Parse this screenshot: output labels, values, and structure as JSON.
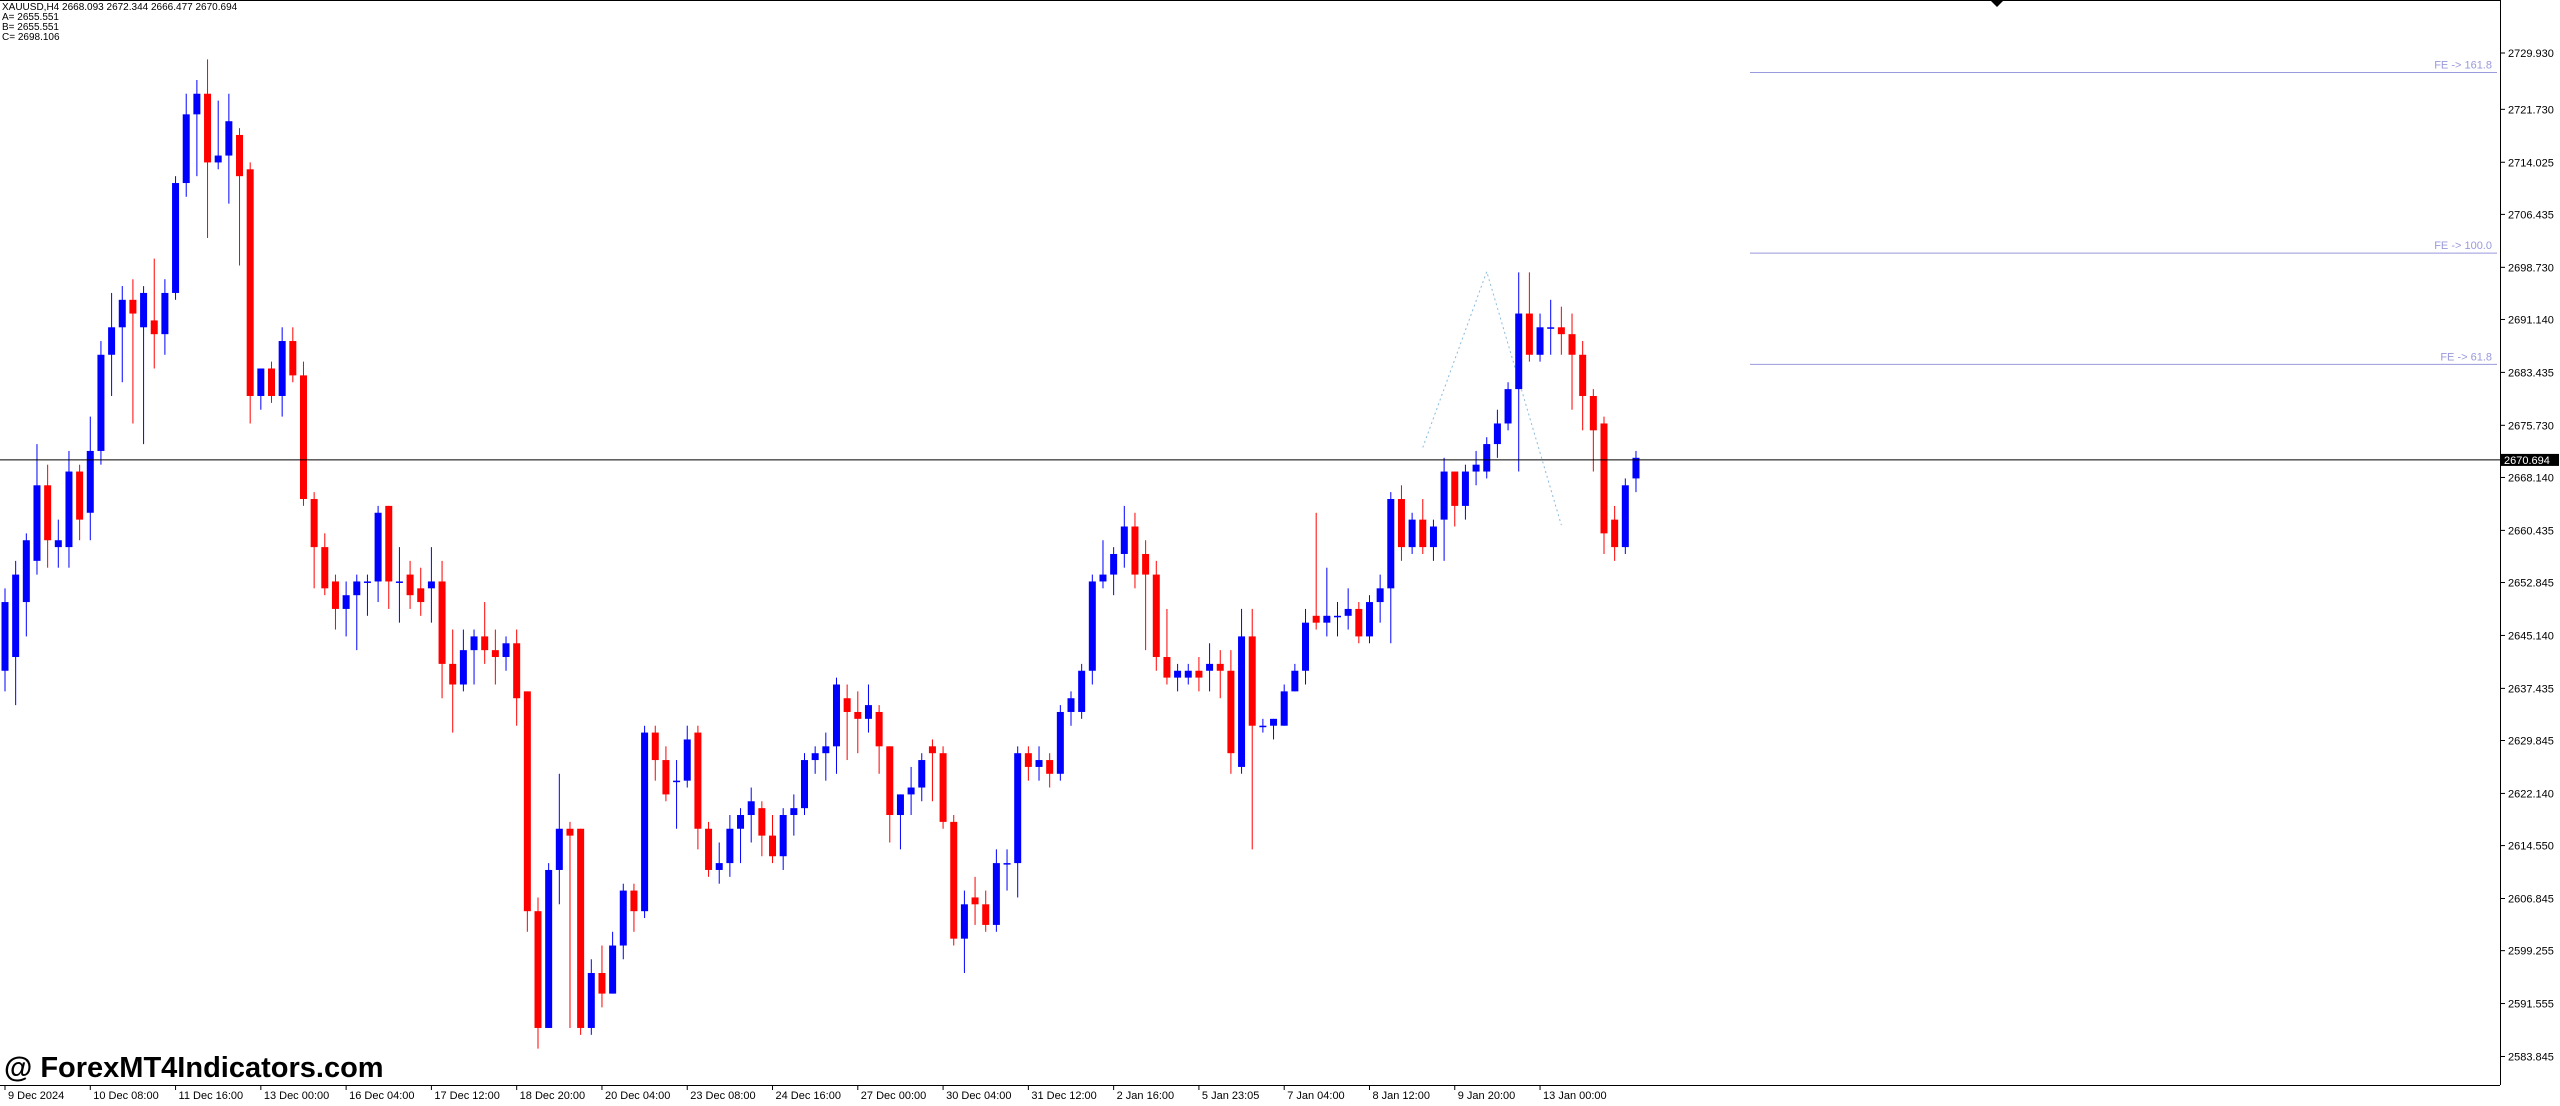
{
  "header": {
    "symbol_line": "XAUUSD,H4  2668.093 2672.344 2666.477 2670.694",
    "point_a": "A= 2655.551",
    "point_b": "B= 2655.551",
    "point_c": "C= 2698.106"
  },
  "watermark": "@ ForexMT4Indicators.com",
  "colors": {
    "bull": "#0000ff",
    "bear": "#ff0000",
    "fe_line": "#9999dd",
    "price_line": "#000000",
    "zigzag": "#88bbdd"
  },
  "chart_data": {
    "type": "candlestick",
    "symbol": "XAUUSD",
    "timeframe": "H4",
    "ylim": [
      2580.0,
      2735.0
    ],
    "y_ticks": [
      "2729.930",
      "2721.730",
      "2714.025",
      "2706.435",
      "2698.730",
      "2691.140",
      "2683.435",
      "2675.730",
      "2668.140",
      "2660.435",
      "2652.845",
      "2645.140",
      "2637.435",
      "2629.845",
      "2622.140",
      "2614.550",
      "2606.845",
      "2599.255",
      "2591.555",
      "2583.845"
    ],
    "x_ticks": [
      {
        "bar": 0,
        "label": "9 Dec 2024"
      },
      {
        "bar": 8,
        "label": "10 Dec 08:00"
      },
      {
        "bar": 16,
        "label": "11 Dec 16:00"
      },
      {
        "bar": 24,
        "label": "13 Dec 00:00"
      },
      {
        "bar": 32,
        "label": "16 Dec 04:00"
      },
      {
        "bar": 40,
        "label": "17 Dec 12:00"
      },
      {
        "bar": 48,
        "label": "18 Dec 20:00"
      },
      {
        "bar": 56,
        "label": "20 Dec 04:00"
      },
      {
        "bar": 64,
        "label": "23 Dec 08:00"
      },
      {
        "bar": 72,
        "label": "24 Dec 16:00"
      },
      {
        "bar": 80,
        "label": "27 Dec 00:00"
      },
      {
        "bar": 88,
        "label": "30 Dec 04:00"
      },
      {
        "bar": 96,
        "label": "31 Dec 12:00"
      },
      {
        "bar": 104,
        "label": "2 Jan 16:00"
      },
      {
        "bar": 112,
        "label": "5 Jan 23:05"
      },
      {
        "bar": 120,
        "label": "7 Jan 04:00"
      },
      {
        "bar": 128,
        "label": "8 Jan 12:00"
      },
      {
        "bar": 136,
        "label": "9 Jan 20:00"
      },
      {
        "bar": 144,
        "label": "13 Jan 00:00"
      }
    ],
    "current_price": "2670.694",
    "fe_levels": [
      {
        "label": "FE ->  161.8",
        "price": 2727.1
      },
      {
        "label": "FE ->  100.0",
        "price": 2700.8
      },
      {
        "label": "FE ->  61.8",
        "price": 2684.6
      }
    ],
    "zigzag": [
      {
        "bar": 133,
        "price": 2672.5
      },
      {
        "bar": 139,
        "price": 2698.1
      },
      {
        "bar": 146,
        "price": 2661.2
      }
    ],
    "candles": [
      {
        "o": 2640,
        "h": 2652,
        "c": 2650,
        "l": 2637
      },
      {
        "o": 2642,
        "h": 2656,
        "c": 2654,
        "l": 2635
      },
      {
        "o": 2650,
        "h": 2660,
        "c": 2659,
        "l": 2645
      },
      {
        "o": 2656,
        "h": 2673,
        "c": 2667,
        "l": 2654
      },
      {
        "o": 2667,
        "h": 2670,
        "c": 2659,
        "l": 2655
      },
      {
        "o": 2658,
        "h": 2662,
        "c": 2659,
        "l": 2655
      },
      {
        "o": 2658,
        "h": 2672,
        "c": 2669,
        "l": 2655
      },
      {
        "o": 2669,
        "h": 2670,
        "c": 2662,
        "l": 2659
      },
      {
        "o": 2663,
        "h": 2677,
        "c": 2672,
        "l": 2659
      },
      {
        "o": 2672,
        "h": 2688,
        "c": 2686,
        "l": 2670
      },
      {
        "o": 2686,
        "h": 2695,
        "c": 2690,
        "l": 2680
      },
      {
        "o": 2690,
        "h": 2696,
        "c": 2694,
        "l": 2682
      },
      {
        "o": 2694,
        "h": 2697,
        "c": 2692,
        "l": 2676
      },
      {
        "o": 2690,
        "h": 2696,
        "c": 2695,
        "l": 2673
      },
      {
        "o": 2691,
        "h": 2700,
        "c": 2689,
        "l": 2684
      },
      {
        "o": 2689,
        "h": 2697,
        "c": 2695,
        "l": 2686
      },
      {
        "o": 2695,
        "h": 2712,
        "c": 2711,
        "l": 2694
      },
      {
        "o": 2711,
        "h": 2724,
        "c": 2721,
        "l": 2709
      },
      {
        "o": 2721,
        "h": 2726,
        "c": 2724,
        "l": 2712
      },
      {
        "o": 2724,
        "h": 2729,
        "c": 2714,
        "l": 2703
      },
      {
        "o": 2714,
        "h": 2723,
        "c": 2715,
        "l": 2713
      },
      {
        "o": 2715,
        "h": 2724,
        "c": 2720,
        "l": 2708
      },
      {
        "o": 2718,
        "h": 2719,
        "c": 2712,
        "l": 2699
      },
      {
        "o": 2713,
        "h": 2714,
        "c": 2680,
        "l": 2676
      },
      {
        "o": 2680,
        "h": 2684,
        "c": 2684,
        "l": 2678
      },
      {
        "o": 2684,
        "h": 2685,
        "c": 2680,
        "l": 2679
      },
      {
        "o": 2680,
        "h": 2690,
        "c": 2688,
        "l": 2677
      },
      {
        "o": 2688,
        "h": 2690,
        "c": 2683,
        "l": 2682
      },
      {
        "o": 2683,
        "h": 2685,
        "c": 2665,
        "l": 2664
      },
      {
        "o": 2665,
        "h": 2666,
        "c": 2658,
        "l": 2652
      },
      {
        "o": 2658,
        "h": 2660,
        "c": 2652,
        "l": 2651
      },
      {
        "o": 2653,
        "h": 2654,
        "c": 2649,
        "l": 2646
      },
      {
        "o": 2649,
        "h": 2653,
        "c": 2651,
        "l": 2645
      },
      {
        "o": 2651,
        "h": 2654,
        "c": 2653,
        "l": 2643
      },
      {
        "o": 2653,
        "h": 2654,
        "c": 2653,
        "l": 2648
      },
      {
        "o": 2653,
        "h": 2664,
        "c": 2663,
        "l": 2650
      },
      {
        "o": 2664,
        "h": 2664,
        "c": 2653,
        "l": 2649
      },
      {
        "o": 2653,
        "h": 2658,
        "c": 2653,
        "l": 2647
      },
      {
        "o": 2654,
        "h": 2656,
        "c": 2651,
        "l": 2649
      },
      {
        "o": 2652,
        "h": 2655,
        "c": 2650,
        "l": 2648
      },
      {
        "o": 2652,
        "h": 2658,
        "c": 2653,
        "l": 2647
      },
      {
        "o": 2653,
        "h": 2656,
        "c": 2641,
        "l": 2636
      },
      {
        "o": 2641,
        "h": 2646,
        "c": 2638,
        "l": 2631
      },
      {
        "o": 2638,
        "h": 2646,
        "c": 2643,
        "l": 2637
      },
      {
        "o": 2643,
        "h": 2646,
        "c": 2645,
        "l": 2638
      },
      {
        "o": 2645,
        "h": 2650,
        "c": 2643,
        "l": 2641
      },
      {
        "o": 2643,
        "h": 2646,
        "c": 2642,
        "l": 2638
      },
      {
        "o": 2642,
        "h": 2645,
        "c": 2644,
        "l": 2640
      },
      {
        "o": 2644,
        "h": 2646,
        "c": 2636,
        "l": 2632
      },
      {
        "o": 2637,
        "h": 2637,
        "c": 2605,
        "l": 2602
      },
      {
        "o": 2605,
        "h": 2607,
        "c": 2588,
        "l": 2585
      },
      {
        "o": 2588,
        "h": 2612,
        "c": 2611,
        "l": 2588
      },
      {
        "o": 2611,
        "h": 2625,
        "c": 2617,
        "l": 2606
      },
      {
        "o": 2617,
        "h": 2618,
        "c": 2616,
        "l": 2588
      },
      {
        "o": 2617,
        "h": 2617,
        "c": 2588,
        "l": 2587
      },
      {
        "o": 2588,
        "h": 2598,
        "c": 2596,
        "l": 2587
      },
      {
        "o": 2596,
        "h": 2600,
        "c": 2593,
        "l": 2591
      },
      {
        "o": 2593,
        "h": 2602,
        "c": 2600,
        "l": 2593
      },
      {
        "o": 2600,
        "h": 2609,
        "c": 2608,
        "l": 2598
      },
      {
        "o": 2608,
        "h": 2609,
        "c": 2605,
        "l": 2602
      },
      {
        "o": 2605,
        "h": 2632,
        "c": 2631,
        "l": 2604
      },
      {
        "o": 2631,
        "h": 2632,
        "c": 2627,
        "l": 2624
      },
      {
        "o": 2627,
        "h": 2629,
        "c": 2622,
        "l": 2621
      },
      {
        "o": 2624,
        "h": 2627,
        "c": 2624,
        "l": 2617
      },
      {
        "o": 2624,
        "h": 2632,
        "c": 2630,
        "l": 2623
      },
      {
        "o": 2631,
        "h": 2632,
        "c": 2617,
        "l": 2614
      },
      {
        "o": 2617,
        "h": 2618,
        "c": 2611,
        "l": 2610
      },
      {
        "o": 2611,
        "h": 2615,
        "c": 2612,
        "l": 2609
      },
      {
        "o": 2612,
        "h": 2619,
        "c": 2617,
        "l": 2610
      },
      {
        "o": 2617,
        "h": 2620,
        "c": 2619,
        "l": 2612
      },
      {
        "o": 2619,
        "h": 2623,
        "c": 2621,
        "l": 2615
      },
      {
        "o": 2620,
        "h": 2621,
        "c": 2616,
        "l": 2613
      },
      {
        "o": 2616,
        "h": 2619,
        "c": 2613,
        "l": 2612
      },
      {
        "o": 2613,
        "h": 2620,
        "c": 2619,
        "l": 2611
      },
      {
        "o": 2619,
        "h": 2622,
        "c": 2620,
        "l": 2616
      },
      {
        "o": 2620,
        "h": 2628,
        "c": 2627,
        "l": 2619
      },
      {
        "o": 2627,
        "h": 2629,
        "c": 2628,
        "l": 2625
      },
      {
        "o": 2628,
        "h": 2631,
        "c": 2629,
        "l": 2624
      },
      {
        "o": 2629,
        "h": 2639,
        "c": 2638,
        "l": 2625
      },
      {
        "o": 2636,
        "h": 2638,
        "c": 2634,
        "l": 2627
      },
      {
        "o": 2634,
        "h": 2637,
        "c": 2633,
        "l": 2628
      },
      {
        "o": 2633,
        "h": 2638,
        "c": 2635,
        "l": 2631
      },
      {
        "o": 2634,
        "h": 2635,
        "c": 2629,
        "l": 2625
      },
      {
        "o": 2629,
        "h": 2629,
        "c": 2619,
        "l": 2615
      },
      {
        "o": 2619,
        "h": 2622,
        "c": 2622,
        "l": 2614
      },
      {
        "o": 2622,
        "h": 2626,
        "c": 2623,
        "l": 2619
      },
      {
        "o": 2623,
        "h": 2628,
        "c": 2627,
        "l": 2621
      },
      {
        "o": 2629,
        "h": 2630,
        "c": 2628,
        "l": 2621
      },
      {
        "o": 2628,
        "h": 2629,
        "c": 2618,
        "l": 2617
      },
      {
        "o": 2618,
        "h": 2619,
        "c": 2601,
        "l": 2600
      },
      {
        "o": 2601,
        "h": 2608,
        "c": 2606,
        "l": 2596
      },
      {
        "o": 2607,
        "h": 2610,
        "c": 2606,
        "l": 2603
      },
      {
        "o": 2606,
        "h": 2608,
        "c": 2603,
        "l": 2602
      },
      {
        "o": 2603,
        "h": 2614,
        "c": 2612,
        "l": 2602
      },
      {
        "o": 2612,
        "h": 2614,
        "c": 2612,
        "l": 2608
      },
      {
        "o": 2612,
        "h": 2629,
        "c": 2628,
        "l": 2607
      },
      {
        "o": 2628,
        "h": 2629,
        "c": 2626,
        "l": 2624
      },
      {
        "o": 2626,
        "h": 2629,
        "c": 2627,
        "l": 2624
      },
      {
        "o": 2627,
        "h": 2628,
        "c": 2625,
        "l": 2623
      },
      {
        "o": 2625,
        "h": 2635,
        "c": 2634,
        "l": 2624
      },
      {
        "o": 2634,
        "h": 2637,
        "c": 2636,
        "l": 2632
      },
      {
        "o": 2634,
        "h": 2641,
        "c": 2640,
        "l": 2633
      },
      {
        "o": 2640,
        "h": 2654,
        "c": 2653,
        "l": 2638
      },
      {
        "o": 2653,
        "h": 2659,
        "c": 2654,
        "l": 2652
      },
      {
        "o": 2654,
        "h": 2658,
        "c": 2657,
        "l": 2651
      },
      {
        "o": 2657,
        "h": 2664,
        "c": 2661,
        "l": 2655
      },
      {
        "o": 2661,
        "h": 2663,
        "c": 2654,
        "l": 2652
      },
      {
        "o": 2657,
        "h": 2659,
        "c": 2654,
        "l": 2643
      },
      {
        "o": 2654,
        "h": 2656,
        "c": 2642,
        "l": 2640
      },
      {
        "o": 2642,
        "h": 2649,
        "c": 2639,
        "l": 2638
      },
      {
        "o": 2639,
        "h": 2641,
        "c": 2640,
        "l": 2637
      },
      {
        "o": 2639,
        "h": 2641,
        "c": 2640,
        "l": 2638
      },
      {
        "o": 2640,
        "h": 2642,
        "c": 2639,
        "l": 2637
      },
      {
        "o": 2640,
        "h": 2644,
        "c": 2641,
        "l": 2637
      },
      {
        "o": 2641,
        "h": 2643,
        "c": 2640,
        "l": 2636
      },
      {
        "o": 2640,
        "h": 2643,
        "c": 2628,
        "l": 2625
      },
      {
        "o": 2626,
        "h": 2649,
        "c": 2645,
        "l": 2625
      },
      {
        "o": 2645,
        "h": 2649,
        "c": 2632,
        "l": 2614
      },
      {
        "o": 2632,
        "h": 2633,
        "c": 2632,
        "l": 2631
      },
      {
        "o": 2632,
        "h": 2633,
        "c": 2633,
        "l": 2630
      },
      {
        "o": 2632,
        "h": 2638,
        "c": 2637,
        "l": 2632
      },
      {
        "o": 2637,
        "h": 2641,
        "c": 2640,
        "l": 2637
      },
      {
        "o": 2640,
        "h": 2649,
        "c": 2647,
        "l": 2638
      },
      {
        "o": 2648,
        "h": 2663,
        "c": 2647,
        "l": 2646
      },
      {
        "o": 2647,
        "h": 2655,
        "c": 2648,
        "l": 2645
      },
      {
        "o": 2648,
        "h": 2650,
        "c": 2648,
        "l": 2645
      },
      {
        "o": 2648,
        "h": 2652,
        "c": 2649,
        "l": 2646
      },
      {
        "o": 2649,
        "h": 2650,
        "c": 2645,
        "l": 2644
      },
      {
        "o": 2645,
        "h": 2651,
        "c": 2650,
        "l": 2644
      },
      {
        "o": 2650,
        "h": 2654,
        "c": 2652,
        "l": 2647
      },
      {
        "o": 2652,
        "h": 2666,
        "c": 2665,
        "l": 2644
      },
      {
        "o": 2665,
        "h": 2667,
        "c": 2658,
        "l": 2656
      },
      {
        "o": 2658,
        "h": 2663,
        "c": 2662,
        "l": 2657
      },
      {
        "o": 2662,
        "h": 2665,
        "c": 2658,
        "l": 2657
      },
      {
        "o": 2658,
        "h": 2662,
        "c": 2661,
        "l": 2656
      },
      {
        "o": 2662,
        "h": 2671,
        "c": 2669,
        "l": 2656
      },
      {
        "o": 2669,
        "h": 2669,
        "c": 2664,
        "l": 2661
      },
      {
        "o": 2664,
        "h": 2670,
        "c": 2669,
        "l": 2662
      },
      {
        "o": 2669,
        "h": 2672,
        "c": 2670,
        "l": 2667
      },
      {
        "o": 2669,
        "h": 2674,
        "c": 2673,
        "l": 2668
      },
      {
        "o": 2673,
        "h": 2678,
        "c": 2676,
        "l": 2671
      },
      {
        "o": 2676,
        "h": 2682,
        "c": 2681,
        "l": 2675
      },
      {
        "o": 2681,
        "h": 2698,
        "c": 2692,
        "l": 2669
      },
      {
        "o": 2692,
        "h": 2698,
        "c": 2686,
        "l": 2685
      },
      {
        "o": 2686,
        "h": 2692,
        "c": 2690,
        "l": 2685
      },
      {
        "o": 2690,
        "h": 2694,
        "c": 2690,
        "l": 2686
      },
      {
        "o": 2690,
        "h": 2693,
        "c": 2689,
        "l": 2686
      },
      {
        "o": 2689,
        "h": 2692,
        "c": 2686,
        "l": 2678
      },
      {
        "o": 2686,
        "h": 2688,
        "c": 2680,
        "l": 2675
      },
      {
        "o": 2680,
        "h": 2681,
        "c": 2675,
        "l": 2669
      },
      {
        "o": 2676,
        "h": 2677,
        "c": 2660,
        "l": 2657
      },
      {
        "o": 2662,
        "h": 2664,
        "c": 2658,
        "l": 2656
      },
      {
        "o": 2658,
        "h": 2668,
        "c": 2667,
        "l": 2657
      },
      {
        "o": 2668,
        "h": 2672,
        "c": 2671,
        "l": 2666
      }
    ]
  }
}
